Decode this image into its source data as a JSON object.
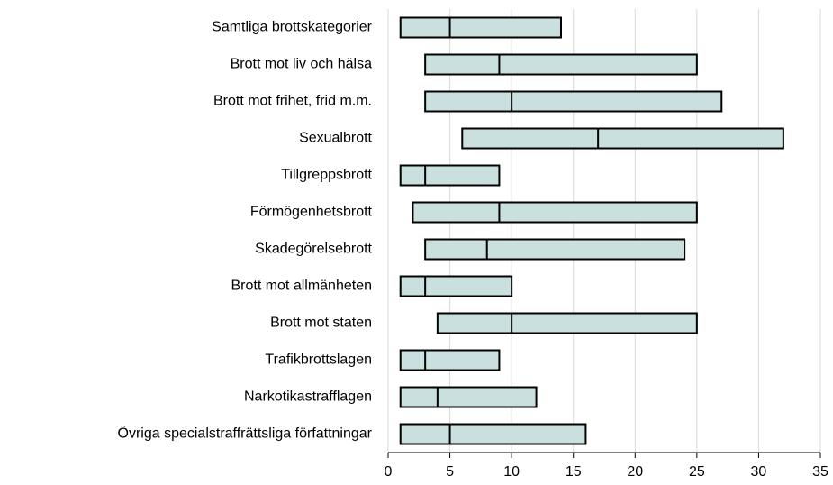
{
  "chart_data": {
    "type": "range",
    "categories": [
      "Samtliga brottskategorier",
      "Brott mot liv och hälsa",
      "Brott mot frihet, frid m.m.",
      "Sexualbrott",
      "Tillgreppsbrott",
      "Förmögenhetsbrott",
      "Skadegörelsebrott",
      "Brott mot allmänheten",
      "Brott mot staten",
      "Trafikbrottslagen",
      "Narkotikastrafflagen",
      "Övriga specialstraffrättsliga författningar"
    ],
    "low": [
      1,
      3,
      3,
      6,
      1,
      2,
      3,
      1,
      4,
      1,
      1,
      1
    ],
    "median": [
      5,
      9,
      10,
      17,
      3,
      9,
      8,
      3,
      10,
      3,
      4,
      5
    ],
    "high": [
      14,
      25,
      27,
      32,
      9,
      25,
      24,
      10,
      25,
      9,
      12,
      16
    ],
    "color": "#c9e0df",
    "xlim": [
      0,
      35
    ],
    "xticks": [
      0,
      5,
      10,
      15,
      20,
      25,
      30,
      35
    ],
    "grid": true
  }
}
